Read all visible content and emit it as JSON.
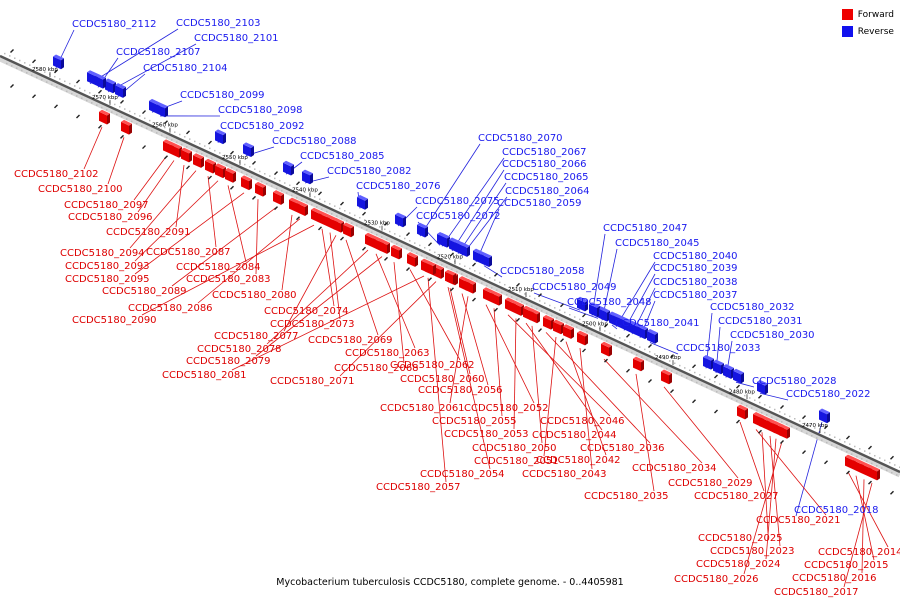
{
  "caption": "Mycobacterium tuberculosis CCDC5180, complete genome. - 0..4405981",
  "legend": [
    {
      "label": "Forward",
      "color": "#ee0000"
    },
    {
      "label": "Reverse",
      "color": "#1111ee"
    }
  ],
  "kbp_marks": [
    "2580 kbp",
    "2570 kbp",
    "2560 kbp",
    "2550 kbp",
    "2540 kbp",
    "2530 kbp",
    "2520 kbp",
    "2510 kbp",
    "2500 kbp",
    "2490 kbp",
    "2480 kbp",
    "2470 kbp"
  ],
  "reverse_genes": [
    "CCDC5180_2112",
    "CCDC5180_2103",
    "CCDC5180_2101",
    "CCDC5180_2107",
    "CCDC5180_2104",
    "CCDC5180_2099",
    "CCDC5180_2098",
    "CCDC5180_2092",
    "CCDC5180_2088",
    "CCDC5180_2085",
    "CCDC5180_2082",
    "CCDC5180_2076",
    "CCDC5180_2075",
    "CCDC5180_2072",
    "CCDC5180_2070",
    "CCDC5180_2067",
    "CCDC5180_2066",
    "CCDC5180_2065",
    "CCDC5180_2064",
    "CCDC5180_2059",
    "CCDC5180_2058",
    "CCDC5180_2049",
    "CCDC5180_2048",
    "CCDC5180_2047",
    "CCDC5180_2045",
    "CCDC5180_2041",
    "CCDC5180_2040",
    "CCDC5180_2039",
    "CCDC5180_2038",
    "CCDC5180_2037",
    "CCDC5180_2033",
    "CCDC5180_2032",
    "CCDC5180_2031",
    "CCDC5180_2030",
    "CCDC5180_2028",
    "CCDC5180_2022",
    "CCDC5180_2018"
  ],
  "forward_genes": [
    "CCDC5180_2102",
    "CCDC5180_2100",
    "CCDC5180_2097",
    "CCDC5180_2096",
    "CCDC5180_2091",
    "CCDC5180_2094",
    "CCDC5180_2087",
    "CCDC5180_2093",
    "CCDC5180_2084",
    "CCDC5180_2095",
    "CCDC5180_2083",
    "CCDC5180_2089",
    "CCDC5180_2080",
    "CCDC5180_2086",
    "CCDC5180_2090",
    "CCDC5180_2074",
    "CCDC5180_2073",
    "CCDC5180_2077",
    "CCDC5180_2069",
    "CCDC5180_2078",
    "CCDC5180_2063",
    "CCDC5180_2079",
    "CCDC5180_2068",
    "CCDC5180_2062",
    "CCDC5180_2081",
    "CCDC5180_2071",
    "CCDC5180_2060",
    "CCDC5180_2056",
    "CCDC5180_2061",
    "CCDC5180_2052",
    "CCDC5180_2055",
    "CCDC5180_2046",
    "CCDC5180_2053",
    "CCDC5180_2044",
    "CCDC5180_2050",
    "CCDC5180_2036",
    "CCDC5180_2051",
    "CCDC5180_2042",
    "CCDC5180_2054",
    "CCDC5180_2043",
    "CCDC5180_2034",
    "CCDC5180_2057",
    "CCDC5180_2035",
    "CCDC5180_2029",
    "CCDC5180_2027",
    "CCDC5180_2021",
    "CCDC5180_2025",
    "CCDC5180_2023",
    "CCDC5180_2014",
    "CCDC5180_2024",
    "CCDC5180_2015",
    "CCDC5180_2026",
    "CCDC5180_2016",
    "CCDC5180_2017"
  ]
}
